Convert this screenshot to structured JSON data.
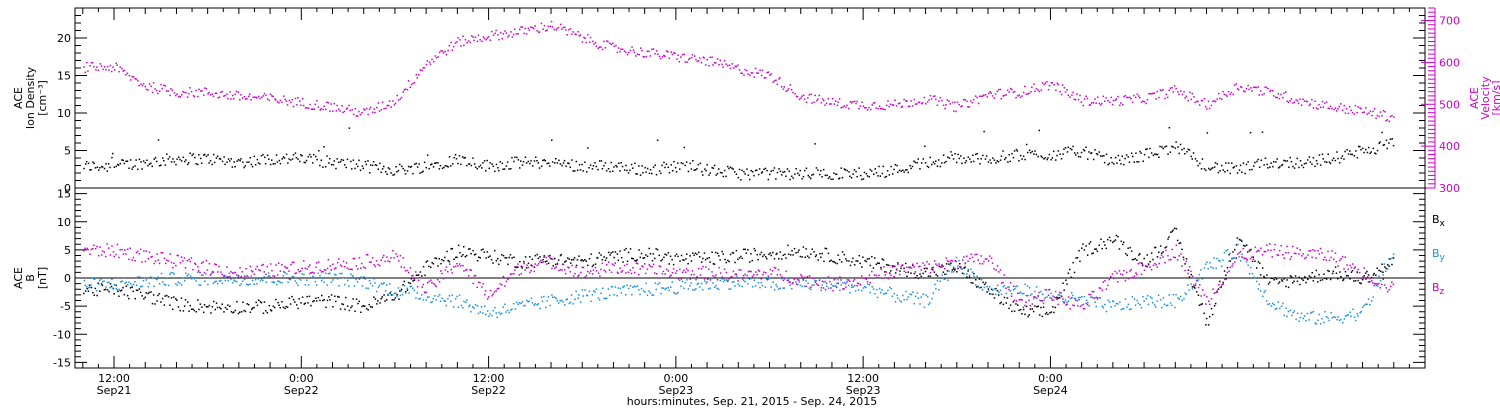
{
  "chart_data": [
    {
      "type": "scatter",
      "panel": "top",
      "ylabel": [
        "ACE",
        "Ion Density",
        "[cm⁻³]"
      ],
      "ylim": [
        0,
        24
      ],
      "yticks": [
        0,
        5,
        10,
        15,
        20
      ],
      "y2label": [
        "ACE",
        "Velocity",
        "[km/s]"
      ],
      "y2lim": [
        300,
        730
      ],
      "y2ticks": [
        300,
        400,
        500,
        600,
        700
      ],
      "y2color": "#cc00cc",
      "series": [
        {
          "color": "#000000",
          "axis": "left",
          "x_hours": [
            0,
            2,
            4,
            6,
            8,
            10,
            12,
            14,
            16,
            18,
            20,
            22,
            24,
            26,
            28,
            30,
            32,
            34,
            36,
            38,
            40,
            42,
            44,
            46,
            48,
            50,
            52,
            54,
            56,
            58,
            60,
            62,
            64,
            66,
            68,
            70,
            72,
            74,
            76,
            78,
            80,
            82
          ],
          "values": [
            3,
            3.5,
            4,
            4,
            3.5,
            4,
            4,
            3.5,
            3,
            2.5,
            3,
            4,
            3,
            3.5,
            3.5,
            3,
            3,
            2.5,
            3,
            2.5,
            2,
            2,
            2,
            2,
            2,
            2.5,
            3.5,
            4,
            4,
            4.5,
            4.5,
            5,
            3.5,
            4.5,
            5.5,
            3,
            2.5,
            3.5,
            3.5,
            4,
            5,
            6
          ]
        },
        {
          "color": "#cc00cc",
          "axis": "right",
          "x_hours": [
            0,
            2,
            4,
            6,
            8,
            10,
            12,
            14,
            16,
            18,
            20,
            22,
            24,
            26,
            28,
            30,
            32,
            34,
            36,
            38,
            40,
            42,
            44,
            46,
            48,
            50,
            52,
            54,
            56,
            58,
            60,
            62,
            64,
            66,
            68,
            70,
            72,
            74,
            76,
            78,
            80,
            82
          ],
          "values": [
            590,
            545,
            530,
            530,
            520,
            515,
            505,
            495,
            480,
            510,
            600,
            650,
            665,
            675,
            690,
            660,
            635,
            625,
            615,
            605,
            585,
            570,
            520,
            505,
            500,
            500,
            515,
            495,
            525,
            530,
            550,
            510,
            510,
            515,
            535,
            500,
            545,
            530,
            510,
            495,
            485,
            470
          ]
        }
      ]
    },
    {
      "type": "scatter",
      "panel": "bottom",
      "ylabel": [
        "ACE",
        "B",
        "[nT]"
      ],
      "ylim": [
        -16,
        16
      ],
      "yticks": [
        -15,
        -10,
        -5,
        0,
        5,
        10,
        15
      ],
      "series": [
        {
          "name": "Bx",
          "label": "B",
          "sub": "x",
          "color": "#000000",
          "x_hours": [
            0,
            2,
            4,
            6,
            8,
            10,
            12,
            14,
            16,
            18,
            20,
            22,
            24,
            26,
            28,
            30,
            32,
            34,
            36,
            38,
            40,
            42,
            44,
            46,
            48,
            50,
            52,
            54,
            56,
            58,
            60,
            62,
            64,
            66,
            68,
            70,
            72,
            74,
            76,
            78,
            80,
            82
          ],
          "values": [
            -2,
            -3,
            -4.5,
            -5,
            -5,
            -5,
            -4,
            -4,
            -5,
            -3,
            2,
            5,
            4,
            3,
            3.5,
            3,
            4,
            4.5,
            3.5,
            3.5,
            4,
            4.5,
            5,
            4,
            3,
            2,
            1,
            2,
            -2,
            -6,
            -6,
            5,
            7,
            3,
            8,
            -8,
            8,
            -1,
            0,
            1,
            0,
            3
          ]
        },
        {
          "name": "By",
          "label": "B",
          "sub": "y",
          "color": "#1a8fe0",
          "x_hours": [
            0,
            2,
            4,
            6,
            8,
            10,
            12,
            14,
            16,
            18,
            20,
            22,
            24,
            26,
            28,
            30,
            32,
            34,
            36,
            38,
            40,
            42,
            44,
            46,
            48,
            50,
            52,
            54,
            56,
            58,
            60,
            62,
            64,
            66,
            68,
            70,
            72,
            74,
            76,
            78,
            80,
            82
          ],
          "values": [
            -1,
            -0.5,
            0,
            0,
            0,
            0,
            0,
            0,
            -0.5,
            -2,
            -3,
            -4,
            -6,
            -5,
            -4,
            -3,
            -2.5,
            -2,
            -1.5,
            -1,
            -0.5,
            -1,
            -1,
            -1,
            -1.5,
            -3,
            -4,
            3,
            -2,
            -2,
            -3,
            -4,
            -5,
            -4,
            -4,
            2,
            5,
            -4,
            -7,
            -7,
            -6,
            5
          ]
        },
        {
          "name": "Bz",
          "label": "B",
          "sub": "z",
          "color": "#cc00cc",
          "x_hours": [
            0,
            2,
            4,
            6,
            8,
            10,
            12,
            14,
            16,
            18,
            20,
            22,
            24,
            26,
            28,
            30,
            32,
            34,
            36,
            38,
            40,
            42,
            44,
            46,
            48,
            50,
            52,
            54,
            56,
            58,
            60,
            62,
            64,
            66,
            68,
            70,
            72,
            74,
            76,
            78,
            80,
            82
          ],
          "values": [
            5,
            4,
            3,
            2,
            1,
            1.5,
            2,
            2.5,
            3,
            4,
            -2,
            3,
            -3,
            2,
            3,
            1,
            2,
            1.5,
            1,
            1,
            0.5,
            1,
            0,
            -1,
            0,
            1.5,
            2,
            3,
            3.5,
            -4,
            -3,
            -5,
            0,
            2,
            5,
            -4,
            4,
            5,
            4.5,
            4,
            1,
            -2
          ]
        }
      ],
      "zero_line": true
    }
  ],
  "x_axis": {
    "start_hour_offset": -2.5,
    "end_hour_offset": 84,
    "ticks": [
      {
        "hour": 0,
        "label": "12:00",
        "date": "Sep21"
      },
      {
        "hour": 12,
        "label": "0:00",
        "date": "Sep22"
      },
      {
        "hour": 24,
        "label": "12:00",
        "date": "Sep22"
      },
      {
        "hour": 36,
        "label": "0:00",
        "date": "Sep23"
      },
      {
        "hour": 48,
        "label": "12:00",
        "date": "Sep23"
      },
      {
        "hour": 60,
        "label": "0:00",
        "date": "Sep24"
      }
    ],
    "title": "hours:minutes, Sep. 21, 2015 - Sep. 24, 2015"
  }
}
